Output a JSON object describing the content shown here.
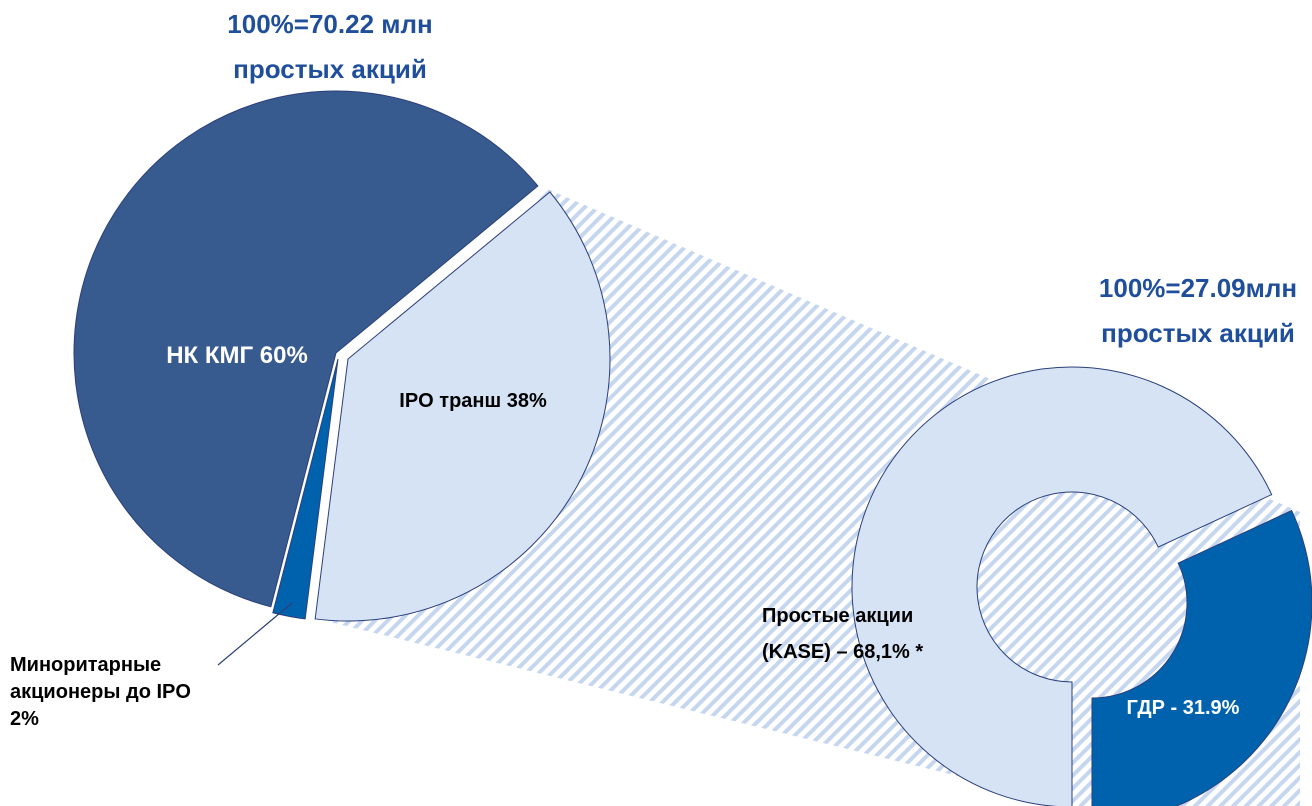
{
  "chart_data": [
    {
      "type": "pie",
      "title": "100%=70.22 млн\nпростых акций",
      "categories": [
        "НК КМГ 60%",
        "IPO транш 38%",
        "Миноритарные\nакционеры до IPO\n2%"
      ],
      "values": [
        60,
        38,
        2
      ],
      "colors": [
        "#375a8f",
        "#d6e3f5",
        "#0062ad"
      ]
    },
    {
      "type": "donut",
      "title": "100%=27.09млн\nпростых акций",
      "categories": [
        "Простые акции\n(KASE) – 68,1% *",
        "ГДР - 31.9%"
      ],
      "values": [
        68.1,
        31.9
      ],
      "colors": [
        "#d6e3f5",
        "#0062ad"
      ]
    }
  ]
}
